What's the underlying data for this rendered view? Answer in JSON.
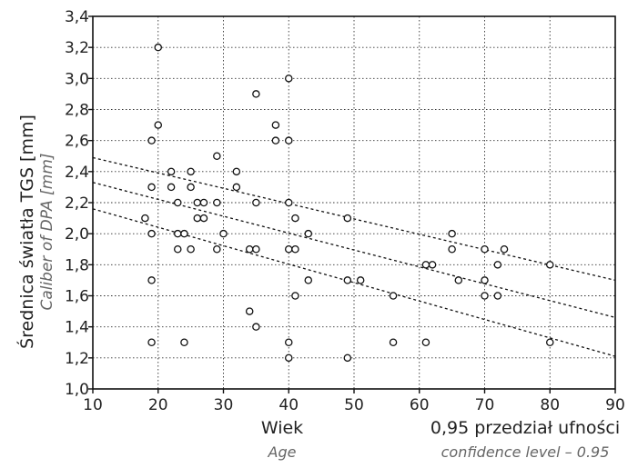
{
  "chart_data": {
    "type": "scatter",
    "ylabel": "Średnica światła TGS [mm]",
    "ylabel_secondary": "Caliber of DPA [mm]",
    "xlabel": "Wiek",
    "xlabel_secondary": "Age",
    "annotation": "0,95 przedział ufności",
    "annotation_secondary": "confidence level – 0.95",
    "xlim": [
      10,
      90
    ],
    "ylim": [
      1.0,
      3.4
    ],
    "x_ticks": [
      10,
      20,
      30,
      40,
      50,
      60,
      70,
      80,
      90
    ],
    "x_tick_labels": [
      "10",
      "20",
      "30",
      "40",
      "50",
      "60",
      "70",
      "80",
      "90"
    ],
    "y_ticks": [
      1.0,
      1.2,
      1.4,
      1.6,
      1.8,
      2.0,
      2.2,
      2.4,
      2.6,
      2.8,
      3.0,
      3.2,
      3.4
    ],
    "y_tick_labels": [
      "1,0",
      "1,2",
      "1,4",
      "1,6",
      "1,8",
      "2,0",
      "2,2",
      "2,4",
      "2,6",
      "2,8",
      "3,0",
      "3,2",
      "3,4"
    ],
    "grid": true,
    "points": [
      {
        "x": 18,
        "y": 2.1
      },
      {
        "x": 19,
        "y": 2.6
      },
      {
        "x": 19,
        "y": 2.3
      },
      {
        "x": 19,
        "y": 2.0
      },
      {
        "x": 19,
        "y": 1.7
      },
      {
        "x": 19,
        "y": 1.3
      },
      {
        "x": 20,
        "y": 3.2
      },
      {
        "x": 20,
        "y": 2.7
      },
      {
        "x": 22,
        "y": 2.4
      },
      {
        "x": 22,
        "y": 2.3
      },
      {
        "x": 23,
        "y": 2.2
      },
      {
        "x": 23,
        "y": 2.0
      },
      {
        "x": 23,
        "y": 1.9
      },
      {
        "x": 24,
        "y": 2.0
      },
      {
        "x": 24,
        "y": 1.3
      },
      {
        "x": 25,
        "y": 2.4
      },
      {
        "x": 25,
        "y": 2.3
      },
      {
        "x": 25,
        "y": 1.9
      },
      {
        "x": 26,
        "y": 2.2
      },
      {
        "x": 26,
        "y": 2.1
      },
      {
        "x": 27,
        "y": 2.2
      },
      {
        "x": 27,
        "y": 2.1
      },
      {
        "x": 29,
        "y": 2.5
      },
      {
        "x": 29,
        "y": 2.2
      },
      {
        "x": 29,
        "y": 1.9
      },
      {
        "x": 30,
        "y": 2.0
      },
      {
        "x": 32,
        "y": 2.4
      },
      {
        "x": 32,
        "y": 2.3
      },
      {
        "x": 34,
        "y": 1.9
      },
      {
        "x": 34,
        "y": 1.5
      },
      {
        "x": 35,
        "y": 2.9
      },
      {
        "x": 35,
        "y": 2.2
      },
      {
        "x": 35,
        "y": 1.9
      },
      {
        "x": 35,
        "y": 1.4
      },
      {
        "x": 38,
        "y": 2.7
      },
      {
        "x": 38,
        "y": 2.6
      },
      {
        "x": 40,
        "y": 3.0
      },
      {
        "x": 40,
        "y": 2.6
      },
      {
        "x": 40,
        "y": 2.2
      },
      {
        "x": 40,
        "y": 1.9
      },
      {
        "x": 40,
        "y": 1.3
      },
      {
        "x": 40,
        "y": 1.2
      },
      {
        "x": 41,
        "y": 2.1
      },
      {
        "x": 41,
        "y": 1.9
      },
      {
        "x": 41,
        "y": 1.6
      },
      {
        "x": 43,
        "y": 2.0
      },
      {
        "x": 43,
        "y": 1.7
      },
      {
        "x": 49,
        "y": 2.1
      },
      {
        "x": 49,
        "y": 1.7
      },
      {
        "x": 49,
        "y": 1.2
      },
      {
        "x": 51,
        "y": 1.7
      },
      {
        "x": 56,
        "y": 1.6
      },
      {
        "x": 56,
        "y": 1.3
      },
      {
        "x": 61,
        "y": 1.8
      },
      {
        "x": 61,
        "y": 1.3
      },
      {
        "x": 62,
        "y": 1.8
      },
      {
        "x": 65,
        "y": 2.0
      },
      {
        "x": 65,
        "y": 1.9
      },
      {
        "x": 66,
        "y": 1.7
      },
      {
        "x": 70,
        "y": 1.9
      },
      {
        "x": 70,
        "y": 1.7
      },
      {
        "x": 70,
        "y": 1.6
      },
      {
        "x": 72,
        "y": 1.8
      },
      {
        "x": 72,
        "y": 1.6
      },
      {
        "x": 73,
        "y": 1.9
      },
      {
        "x": 80,
        "y": 1.8
      },
      {
        "x": 80,
        "y": 1.3
      }
    ],
    "lines": [
      {
        "role": "confidence-upper",
        "x": [
          10,
          90
        ],
        "y": [
          2.49,
          1.7
        ]
      },
      {
        "role": "regression",
        "x": [
          10,
          90
        ],
        "y": [
          2.33,
          1.46
        ]
      },
      {
        "role": "confidence-lower",
        "x": [
          10,
          90
        ],
        "y": [
          2.16,
          1.21
        ]
      }
    ]
  }
}
